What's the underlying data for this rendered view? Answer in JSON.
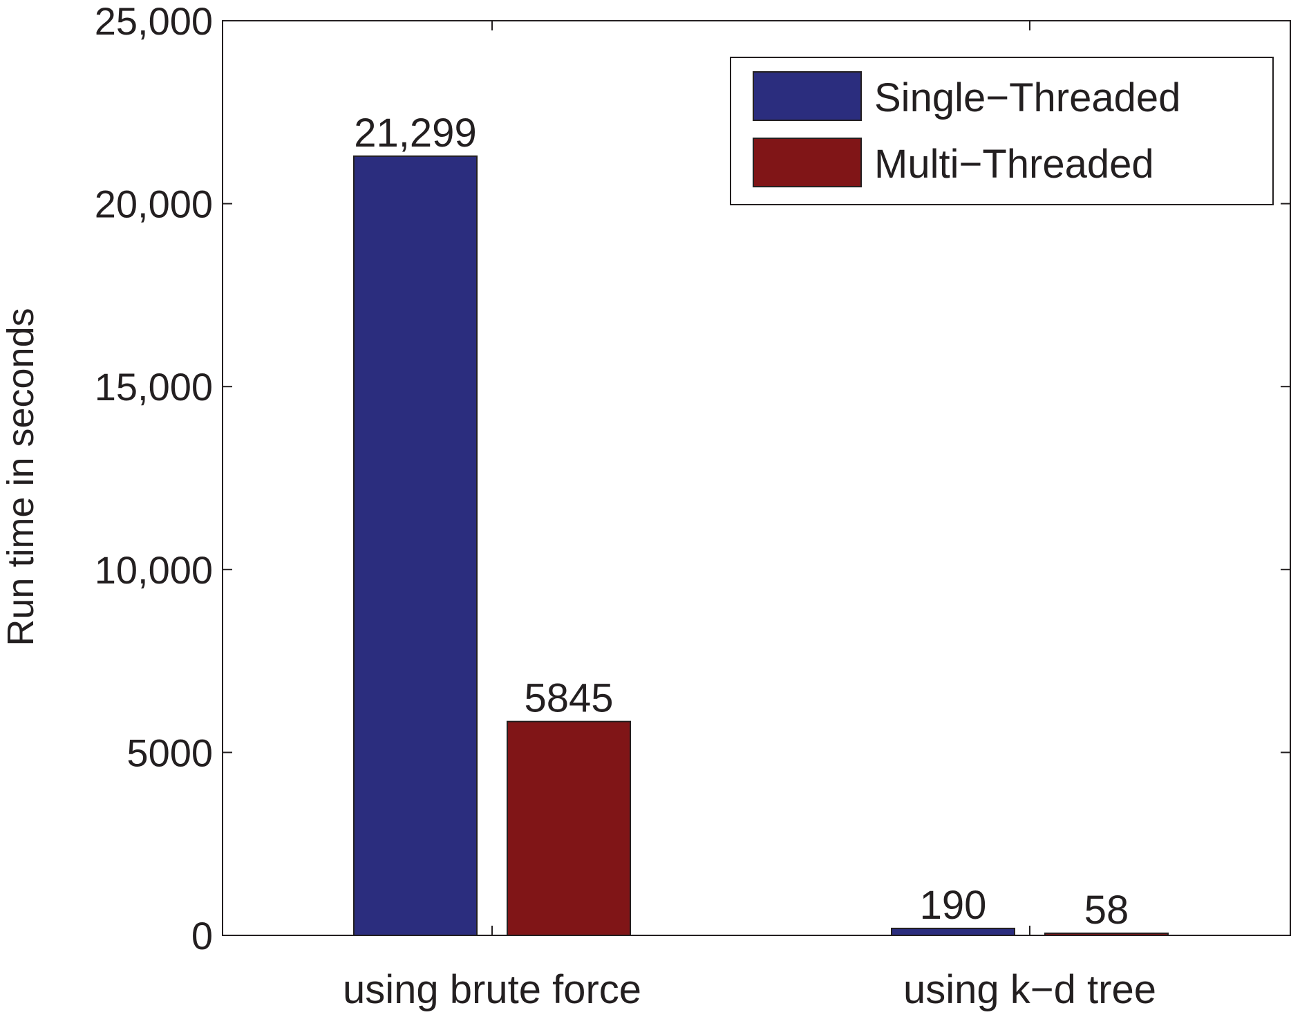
{
  "chart_data": {
    "type": "bar",
    "ylabel": "Run time in seconds",
    "xlabel": "",
    "title": "",
    "categories": [
      "using brute force",
      "using k−d tree"
    ],
    "series": [
      {
        "name": "Single−Threaded",
        "values": [
          21299,
          190
        ],
        "labels": [
          "21,299",
          "190"
        ],
        "color": "#2b2d7e"
      },
      {
        "name": "Multi−Threaded",
        "values": [
          5845,
          58
        ],
        "labels": [
          "5845",
          "58"
        ],
        "color": "#801517"
      }
    ],
    "ylim": [
      0,
      25000
    ],
    "yticks": [
      0,
      5000,
      10000,
      15000,
      20000,
      25000
    ],
    "ytick_labels": [
      "0",
      "5000",
      "10,000",
      "15,000",
      "20,000",
      "25,000"
    ],
    "legend_position": "top-right",
    "grid": false
  }
}
